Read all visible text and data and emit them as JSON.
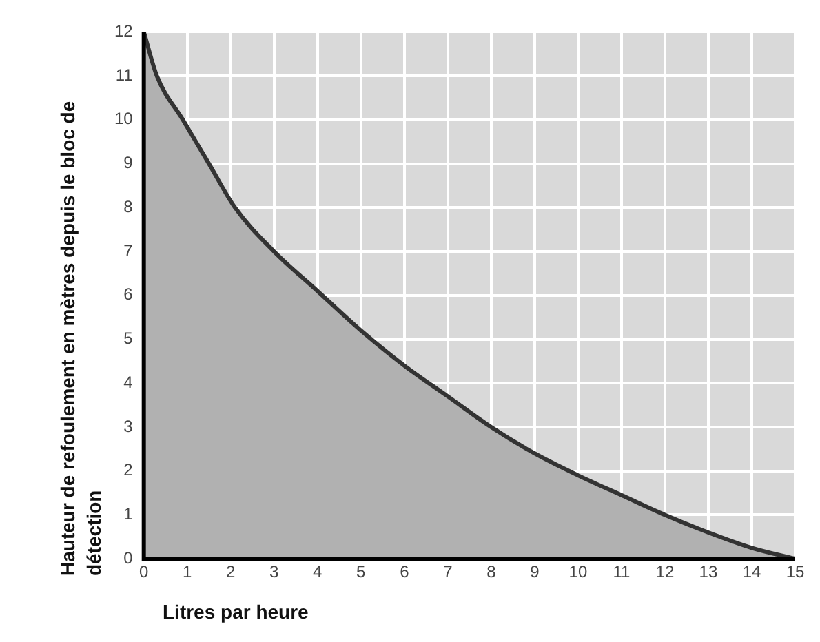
{
  "chart_data": {
    "type": "area",
    "xlabel": "Litres par heure",
    "ylabel": "Hauteur de refoulement  en mètres depuis le bloc de détection",
    "x": [
      0,
      0.3,
      0.9,
      1.5,
      2.1,
      3,
      4,
      5,
      6,
      7,
      8,
      9,
      10,
      11,
      12,
      13,
      14,
      15
    ],
    "series": [
      {
        "color": "#333333",
        "values": [
          12,
          11,
          10,
          9,
          8,
          7,
          6.1,
          5.2,
          4.4,
          3.7,
          3.0,
          2.4,
          1.9,
          1.45,
          1.0,
          0.6,
          0.25,
          0
        ]
      }
    ],
    "xlim": [
      0,
      15
    ],
    "xticks": [
      0,
      1,
      2,
      3,
      4,
      5,
      6,
      7,
      8,
      9,
      10,
      11,
      12,
      13,
      14,
      15
    ],
    "ylim": [
      0,
      12
    ],
    "yticks": [
      0,
      1,
      2,
      3,
      4,
      5,
      6,
      7,
      8,
      9,
      10,
      11,
      12
    ],
    "grid": true,
    "legend": false,
    "marker": "none",
    "line_style": "solid"
  }
}
